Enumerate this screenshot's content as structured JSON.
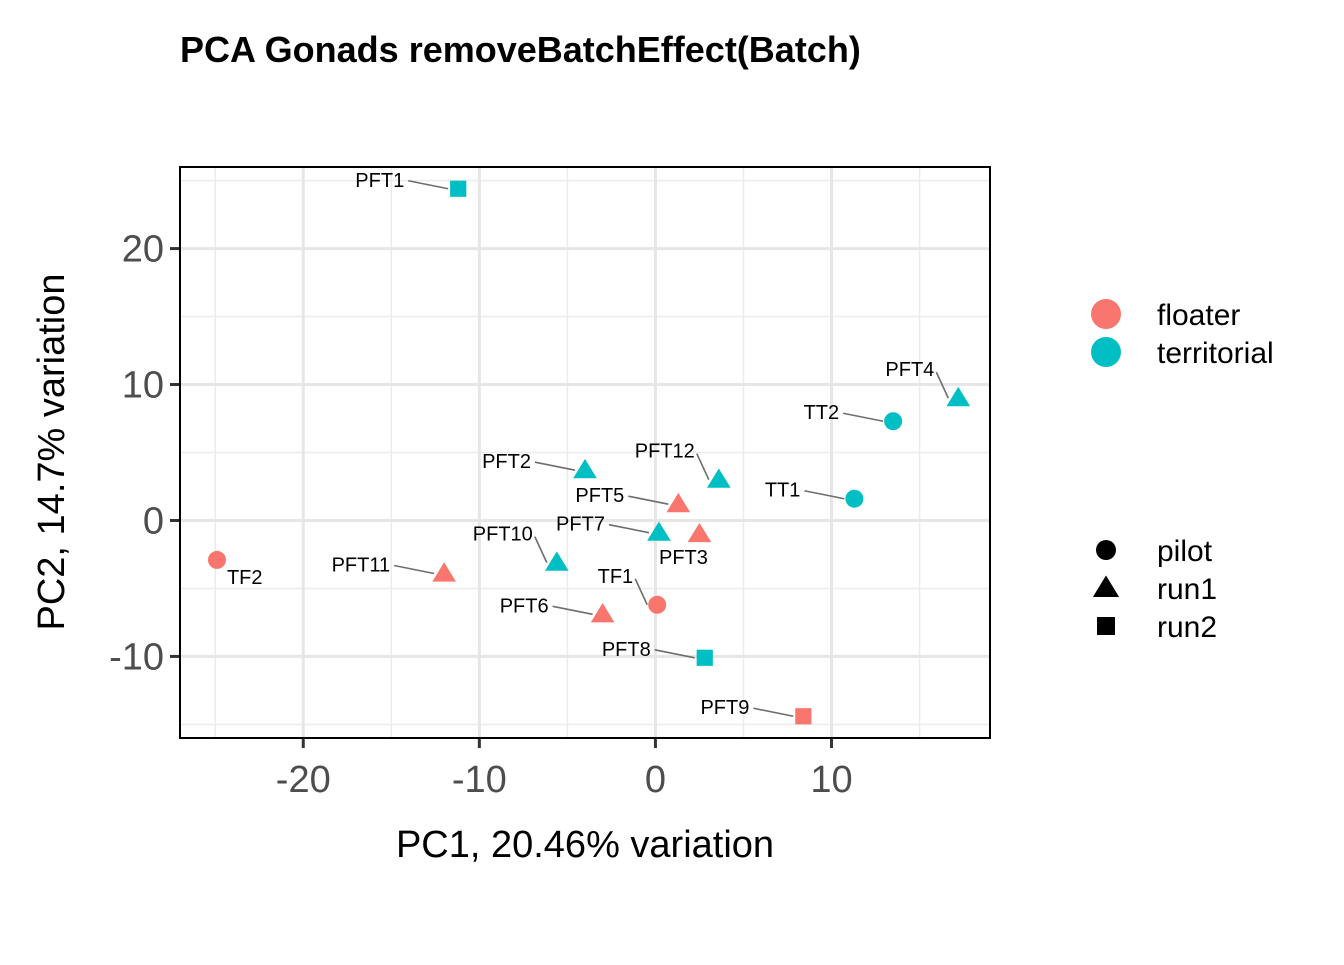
{
  "chart_data": {
    "type": "scatter",
    "title": "PCA Gonads removeBatchEffect(Batch)",
    "xlabel": "PC1, 20.46% variation",
    "ylabel": "PC2, 14.7% variation",
    "xlim": [
      -27,
      19
    ],
    "ylim": [
      -16,
      26
    ],
    "x_ticks": [
      -20,
      -10,
      0,
      10
    ],
    "y_ticks": [
      -10,
      0,
      10,
      20
    ],
    "x_tick_labels": [
      "-20",
      "-10",
      "0",
      "10"
    ],
    "y_tick_labels": [
      "-10",
      "0",
      "10",
      "20"
    ],
    "grid": true,
    "legend_placement": "right",
    "colors": {
      "floater": "#F8766D",
      "territorial": "#00BFC4"
    },
    "color_legend": [
      "floater",
      "territorial"
    ],
    "shape_legend": [
      {
        "name": "pilot",
        "shape": "circle"
      },
      {
        "name": "run1",
        "shape": "triangle"
      },
      {
        "name": "run2",
        "shape": "square"
      }
    ],
    "points": [
      {
        "label": "PFT1",
        "x": -11.2,
        "y": 24.4,
        "group": "territorial",
        "shape": "square",
        "label_pos": "left"
      },
      {
        "label": "PFT4",
        "x": 17.2,
        "y": 9.0,
        "group": "territorial",
        "shape": "triangle",
        "label_pos": "upleft"
      },
      {
        "label": "TT2",
        "x": 13.5,
        "y": 7.3,
        "group": "territorial",
        "shape": "circle",
        "label_pos": "left"
      },
      {
        "label": "PFT2",
        "x": -4.0,
        "y": 3.7,
        "group": "territorial",
        "shape": "triangle",
        "label_pos": "left"
      },
      {
        "label": "PFT12",
        "x": 3.6,
        "y": 3.0,
        "group": "territorial",
        "shape": "triangle",
        "label_pos": "upleft"
      },
      {
        "label": "TT1",
        "x": 11.3,
        "y": 1.6,
        "group": "territorial",
        "shape": "circle",
        "label_pos": "left"
      },
      {
        "label": "PFT5",
        "x": 1.3,
        "y": 1.2,
        "group": "floater",
        "shape": "triangle",
        "label_pos": "left"
      },
      {
        "label": "PFT7",
        "x": 0.2,
        "y": -0.9,
        "group": "territorial",
        "shape": "triangle",
        "label_pos": "left"
      },
      {
        "label": "PFT3",
        "x": 2.5,
        "y": -1.0,
        "group": "floater",
        "shape": "triangle",
        "label_pos": "below"
      },
      {
        "label": "TF2",
        "x": -24.9,
        "y": -2.9,
        "group": "floater",
        "shape": "circle",
        "label_pos": "belowright"
      },
      {
        "label": "PFT10",
        "x": -5.6,
        "y": -3.1,
        "group": "territorial",
        "shape": "triangle",
        "label_pos": "upleft"
      },
      {
        "label": "PFT11",
        "x": -12.0,
        "y": -3.9,
        "group": "floater",
        "shape": "triangle",
        "label_pos": "left"
      },
      {
        "label": "TF1",
        "x": 0.1,
        "y": -6.2,
        "group": "floater",
        "shape": "circle",
        "label_pos": "upleft"
      },
      {
        "label": "PFT6",
        "x": -3.0,
        "y": -6.9,
        "group": "floater",
        "shape": "triangle",
        "label_pos": "left"
      },
      {
        "label": "PFT8",
        "x": 2.8,
        "y": -10.1,
        "group": "territorial",
        "shape": "square",
        "label_pos": "left"
      },
      {
        "label": "PFT9",
        "x": 8.4,
        "y": -14.4,
        "group": "floater",
        "shape": "square",
        "label_pos": "left"
      }
    ]
  }
}
